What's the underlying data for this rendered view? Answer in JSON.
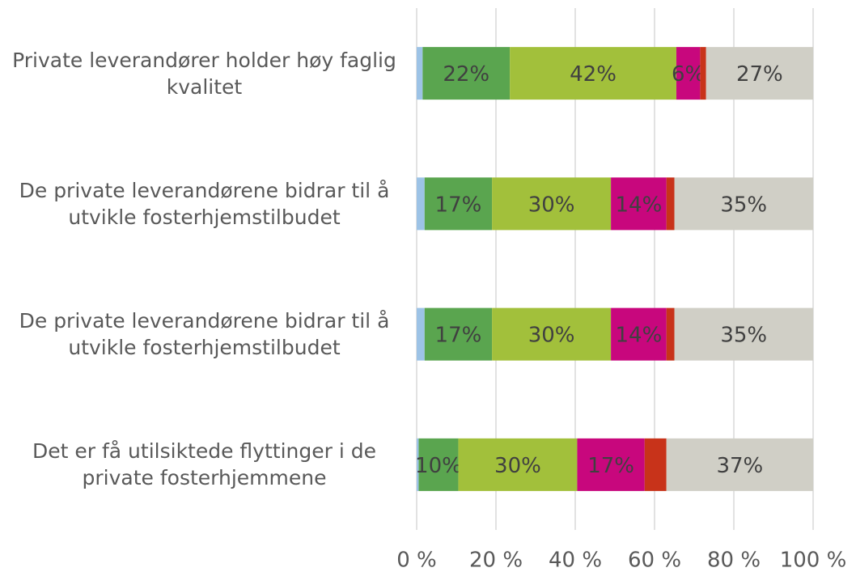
{
  "chart_data": {
    "type": "stacked_barh",
    "categories": [
      "Private leverandører holder høy faglig kvalitet",
      "De private leverandørene bidrar til å utvikle fosterhjemstilbudet",
      "De private leverandørene bidrar til å utvikle fosterhjemstilbudet",
      "Det er få utilsiktede flyttinger i de private fosterhjemmene"
    ],
    "series": [
      {
        "color": "#9dc3e6",
        "values": [
          1.5,
          2,
          2,
          0.5
        ]
      },
      {
        "color": "#5aa54f",
        "values": [
          22,
          17,
          17,
          10
        ],
        "value_labels": [
          "22%",
          "17%",
          "17%",
          "10%"
        ]
      },
      {
        "color": "#a2c03b",
        "values": [
          42,
          30,
          30,
          30
        ],
        "value_labels": [
          "42%",
          "30%",
          "30%",
          "30%"
        ]
      },
      {
        "color": "#c8077d",
        "values": [
          6,
          14,
          14,
          17
        ],
        "value_labels": [
          "6%",
          "14%",
          "14%",
          "17%"
        ]
      },
      {
        "color": "#c8331a",
        "values": [
          1.5,
          2,
          2,
          5.5
        ]
      },
      {
        "color": "#d0cfc6",
        "values": [
          27,
          35,
          35,
          37
        ],
        "value_labels": [
          "27%",
          "35%",
          "35%",
          "37%"
        ]
      }
    ],
    "xlim": [
      0,
      100
    ],
    "xticks": [
      {
        "value": 0,
        "label": "0 %"
      },
      {
        "value": 20,
        "label": "20 %"
      },
      {
        "value": 40,
        "label": "40 %"
      },
      {
        "value": 60,
        "label": "60 %"
      },
      {
        "value": 80,
        "label": "80 %"
      },
      {
        "value": 100,
        "label": "100 %"
      }
    ],
    "grid": true
  }
}
